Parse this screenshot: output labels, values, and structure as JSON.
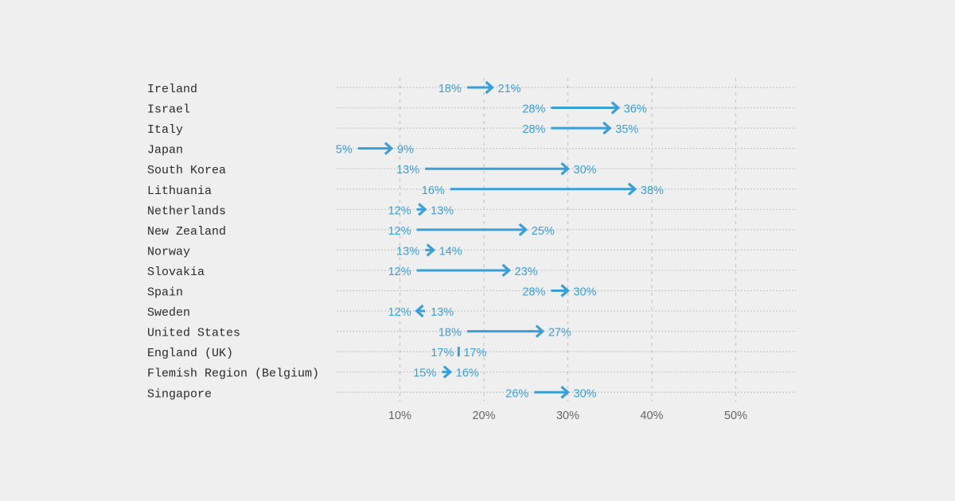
{
  "chart_data": {
    "type": "arrow-dot",
    "title": "",
    "xlabel": "",
    "ylabel": "",
    "xlim": [
      2.5,
      57
    ],
    "x_ticks": [
      "10%",
      "20%",
      "30%",
      "40%",
      "50%"
    ],
    "x_tick_values": [
      10,
      20,
      30,
      40,
      50
    ],
    "grid": true,
    "colors": {
      "arrow": "#3a9fd6",
      "text": "#2a2a2a",
      "tick": "#666666",
      "grid": "#c8c8c8",
      "background": "#efefef"
    },
    "rows": [
      {
        "country": "Ireland",
        "from": 18,
        "to": 21,
        "from_label": "18%",
        "to_label": "21%"
      },
      {
        "country": "Israel",
        "from": 28,
        "to": 36,
        "from_label": "28%",
        "to_label": "36%"
      },
      {
        "country": "Italy",
        "from": 28,
        "to": 35,
        "from_label": "28%",
        "to_label": "35%"
      },
      {
        "country": "Japan",
        "from": 5,
        "to": 9,
        "from_label": "5%",
        "to_label": "9%"
      },
      {
        "country": "South Korea",
        "from": 13,
        "to": 30,
        "from_label": "13%",
        "to_label": "30%"
      },
      {
        "country": "Lithuania",
        "from": 16,
        "to": 38,
        "from_label": "16%",
        "to_label": "38%"
      },
      {
        "country": "Netherlands",
        "from": 12,
        "to": 13,
        "from_label": "12%",
        "to_label": "13%"
      },
      {
        "country": "New Zealand",
        "from": 12,
        "to": 25,
        "from_label": "12%",
        "to_label": "25%"
      },
      {
        "country": "Norway",
        "from": 13,
        "to": 14,
        "from_label": "13%",
        "to_label": "14%"
      },
      {
        "country": "Slovakia",
        "from": 12,
        "to": 23,
        "from_label": "12%",
        "to_label": "23%"
      },
      {
        "country": "Spain",
        "from": 28,
        "to": 30,
        "from_label": "28%",
        "to_label": "30%"
      },
      {
        "country": "Sweden",
        "from": 13,
        "to": 12,
        "from_label": "13%",
        "to_label": "12%"
      },
      {
        "country": "United States",
        "from": 18,
        "to": 27,
        "from_label": "18%",
        "to_label": "27%"
      },
      {
        "country": "England (UK)",
        "from": 17,
        "to": 17,
        "from_label": "17%",
        "to_label": "17%"
      },
      {
        "country": "Flemish Region (Belgium)",
        "from": 15,
        "to": 16,
        "from_label": "15%",
        "to_label": "16%"
      },
      {
        "country": "Singapore",
        "from": 26,
        "to": 30,
        "from_label": "26%",
        "to_label": "30%"
      }
    ]
  }
}
